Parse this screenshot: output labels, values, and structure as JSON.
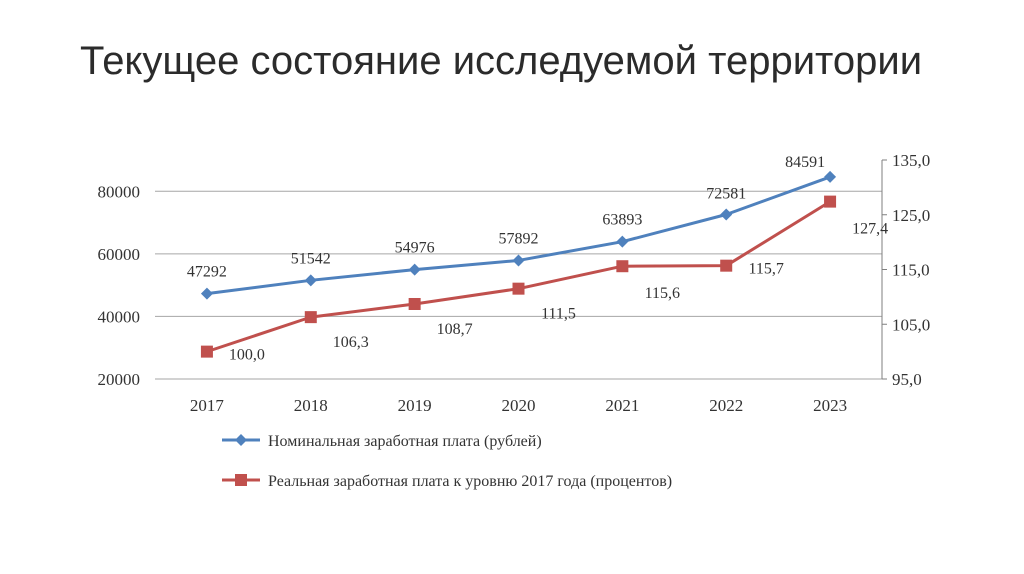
{
  "slide": {
    "title": "Текущее состояние исследуемой территории"
  },
  "chart_data": {
    "type": "line",
    "categories": [
      "2017",
      "2018",
      "2019",
      "2020",
      "2021",
      "2022",
      "2023"
    ],
    "series": [
      {
        "name": "Номинальная заработная плата (рублей)",
        "axis": "left",
        "color": "#4f81bd",
        "marker": "diamond",
        "values": [
          47292,
          51542,
          54976,
          57892,
          63893,
          72581,
          84591
        ],
        "labels": [
          "47292",
          "51542",
          "54976",
          "57892",
          "63893",
          "72581",
          "84591"
        ]
      },
      {
        "name": "Реальная заработная плата к уровню 2017 года (процентов)",
        "axis": "right",
        "color": "#c0504d",
        "marker": "square",
        "values": [
          100.0,
          106.3,
          108.7,
          111.5,
          115.6,
          115.7,
          127.4
        ],
        "labels": [
          "100,0",
          "106,3",
          "108,7",
          "111,5",
          "115,6",
          "115,7",
          "127,4"
        ]
      }
    ],
    "y_left": {
      "range": [
        20000,
        90000
      ],
      "ticks": [
        20000,
        40000,
        60000,
        80000
      ],
      "tick_labels": [
        "20000",
        "40000",
        "60000",
        "80000"
      ]
    },
    "y_right": {
      "range": [
        95.0,
        135.0
      ],
      "ticks": [
        95.0,
        105.0,
        115.0,
        125.0,
        135.0
      ],
      "tick_labels": [
        "95,0",
        "105,0",
        "115,0",
        "125,0",
        "135,0"
      ]
    },
    "grid": true,
    "legend_position": "bottom"
  }
}
